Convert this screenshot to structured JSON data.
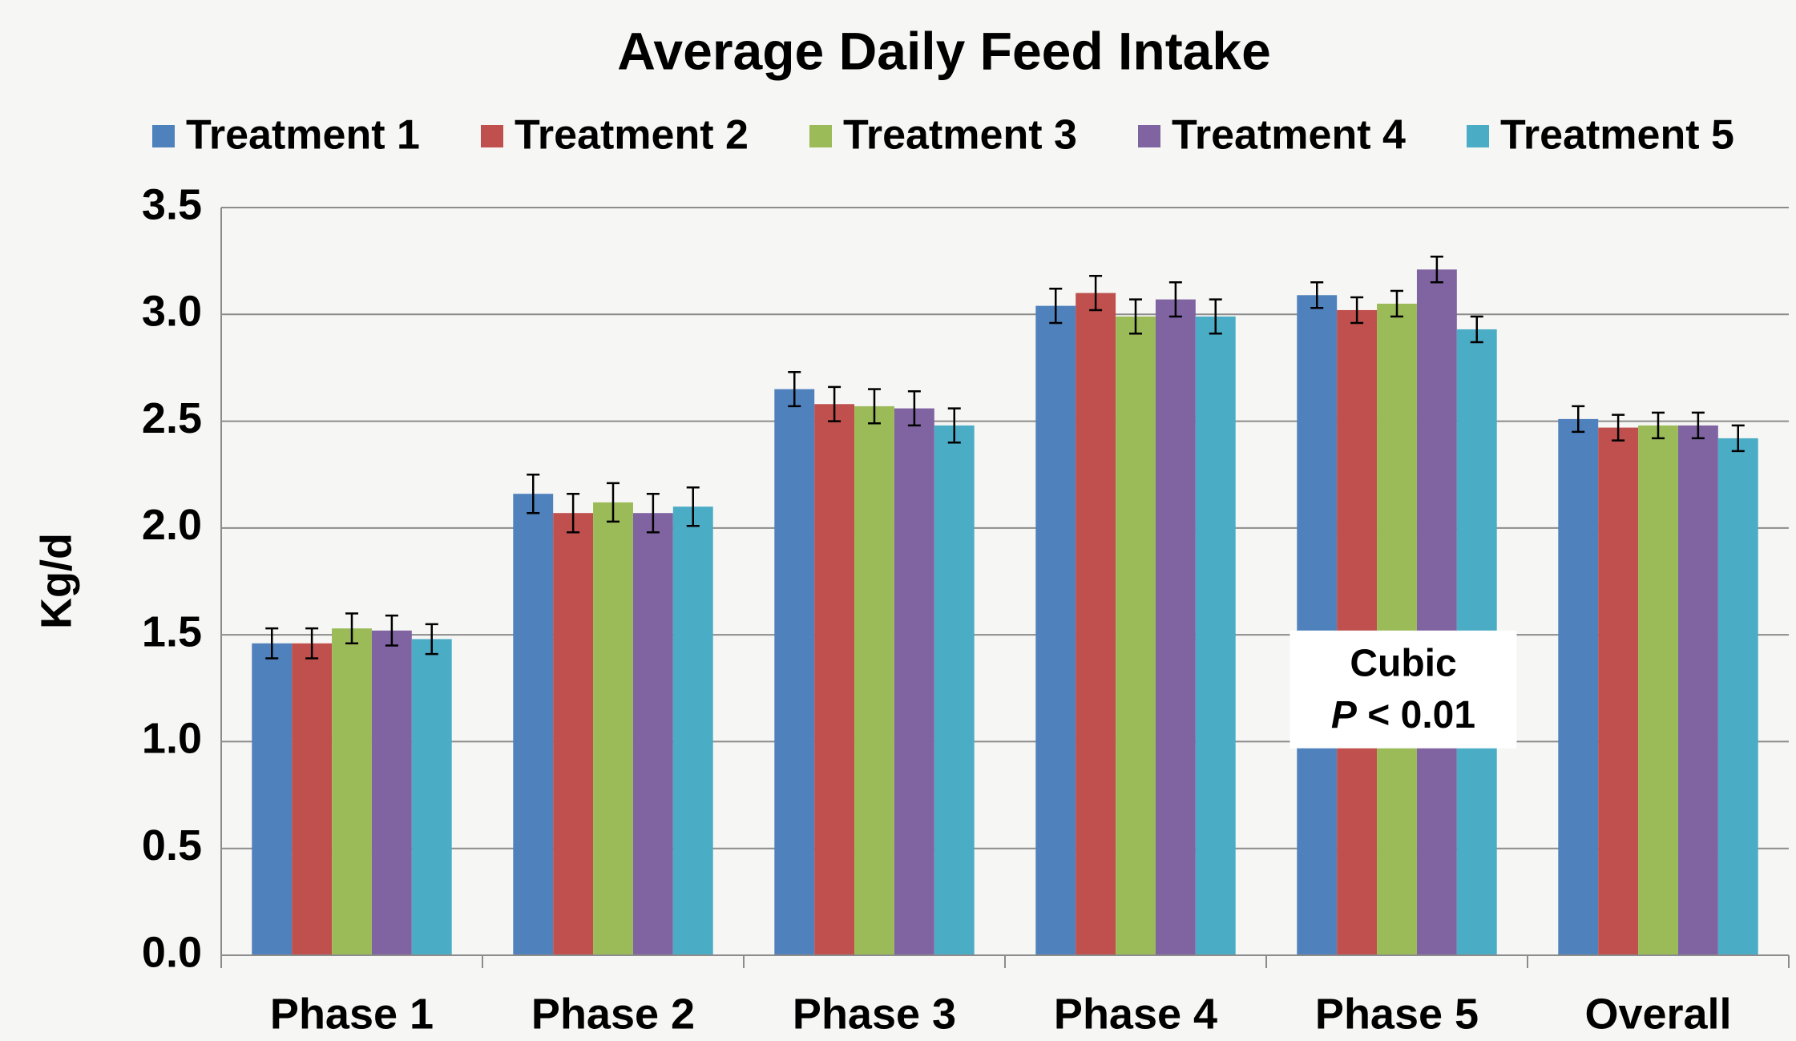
{
  "chart_data": {
    "type": "bar",
    "title": "Average Daily Feed Intake",
    "y_label": "Kg/d",
    "categories": [
      "Phase 1",
      "Phase 2",
      "Phase 3",
      "Phase 4",
      "Phase 5",
      "Overall"
    ],
    "series": [
      {
        "name": "Treatment 1",
        "color": "#4f81bd",
        "values": [
          1.46,
          2.16,
          2.65,
          3.04,
          3.09,
          2.51
        ],
        "errors": [
          0.07,
          0.09,
          0.08,
          0.08,
          0.06,
          0.06
        ]
      },
      {
        "name": "Treatment 2",
        "color": "#c0504d",
        "values": [
          1.46,
          2.07,
          2.58,
          3.1,
          3.02,
          2.47
        ],
        "errors": [
          0.07,
          0.09,
          0.08,
          0.08,
          0.06,
          0.06
        ]
      },
      {
        "name": "Treatment 3",
        "color": "#9bbb59",
        "values": [
          1.53,
          2.12,
          2.57,
          2.99,
          3.05,
          2.48
        ],
        "errors": [
          0.07,
          0.09,
          0.08,
          0.08,
          0.06,
          0.06
        ]
      },
      {
        "name": "Treatment 4",
        "color": "#8064a2",
        "values": [
          1.52,
          2.07,
          2.56,
          3.07,
          3.21,
          2.48
        ],
        "errors": [
          0.07,
          0.09,
          0.08,
          0.08,
          0.06,
          0.06
        ]
      },
      {
        "name": "Treatment 5",
        "color": "#4bacc6",
        "values": [
          1.48,
          2.1,
          2.48,
          2.99,
          2.93,
          2.42
        ],
        "errors": [
          0.07,
          0.09,
          0.08,
          0.08,
          0.06,
          0.06
        ]
      }
    ],
    "ylim": [
      0,
      3.5
    ],
    "yticks": [
      {
        "value": 0,
        "label": "0.0"
      },
      0.5,
      {
        "value": 1,
        "label": "1.0"
      },
      1.5,
      {
        "value": 2,
        "label": "2.0"
      },
      2.5,
      {
        "value": 3,
        "label": "3.0"
      },
      3.5
    ],
    "grid": true,
    "legend": "top",
    "annotation": {
      "line1": "Cubic",
      "italic": "P",
      "rest": "< 0.01"
    }
  }
}
